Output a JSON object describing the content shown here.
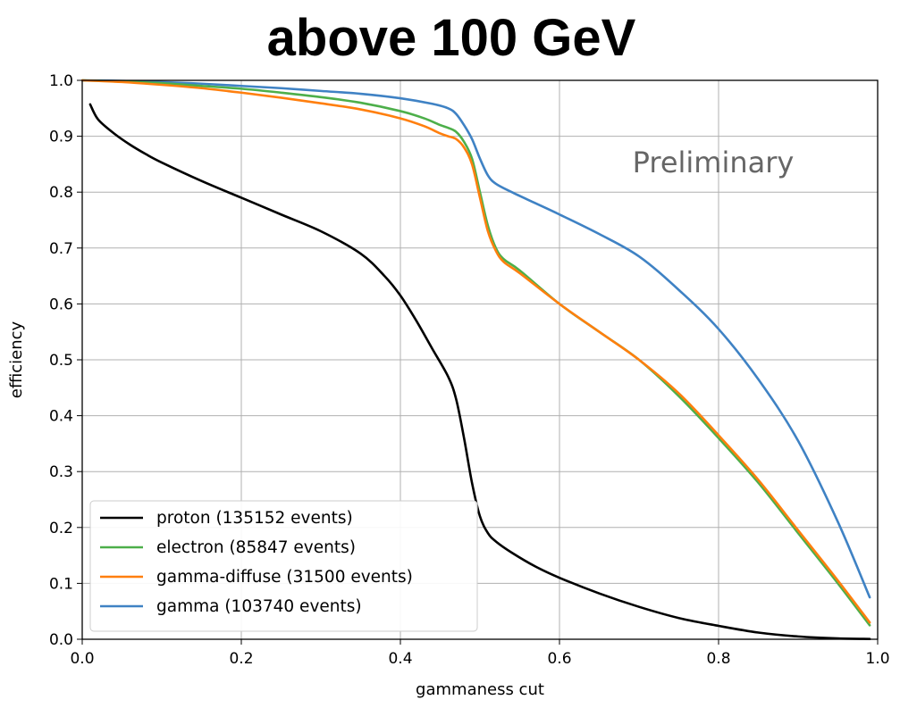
{
  "chart_data": {
    "type": "line",
    "title": "above 100 GeV",
    "xlabel": "gammaness cut",
    "ylabel": "efficiency",
    "xlim": [
      0.0,
      1.0
    ],
    "ylim": [
      0.0,
      1.0
    ],
    "grid": true,
    "xticks": [
      "0.0",
      "0.2",
      "0.4",
      "0.6",
      "0.8",
      "1.0"
    ],
    "yticks": [
      "0.0",
      "0.1",
      "0.2",
      "0.3",
      "0.4",
      "0.5",
      "0.6",
      "0.7",
      "0.8",
      "0.9",
      "1.0"
    ],
    "annotation": "Preliminary",
    "legend_position": "lower-left",
    "series": [
      {
        "name": "proton (135152 events)",
        "color": "#000000",
        "x": [
          0.01,
          0.02,
          0.04,
          0.06,
          0.08,
          0.1,
          0.15,
          0.2,
          0.25,
          0.3,
          0.35,
          0.38,
          0.4,
          0.42,
          0.44,
          0.46,
          0.47,
          0.48,
          0.49,
          0.5,
          0.51,
          0.52,
          0.54,
          0.57,
          0.6,
          0.65,
          0.7,
          0.75,
          0.8,
          0.85,
          0.9,
          0.95,
          0.99
        ],
        "y": [
          0.957,
          0.93,
          0.905,
          0.885,
          0.868,
          0.853,
          0.82,
          0.79,
          0.76,
          0.73,
          0.69,
          0.65,
          0.615,
          0.57,
          0.52,
          0.47,
          0.43,
          0.36,
          0.28,
          0.22,
          0.19,
          0.175,
          0.155,
          0.13,
          0.11,
          0.082,
          0.058,
          0.038,
          0.024,
          0.012,
          0.005,
          0.0015,
          0.0005
        ]
      },
      {
        "name": "electron (85847 events)",
        "color": "#4daf4a",
        "x": [
          0.0,
          0.05,
          0.1,
          0.15,
          0.2,
          0.25,
          0.3,
          0.35,
          0.4,
          0.43,
          0.45,
          0.46,
          0.47,
          0.48,
          0.49,
          0.5,
          0.51,
          0.52,
          0.53,
          0.55,
          0.6,
          0.65,
          0.7,
          0.75,
          0.8,
          0.85,
          0.9,
          0.95,
          0.99
        ],
        "y": [
          1.0,
          0.998,
          0.995,
          0.99,
          0.985,
          0.978,
          0.97,
          0.96,
          0.945,
          0.932,
          0.92,
          0.915,
          0.908,
          0.89,
          0.86,
          0.8,
          0.74,
          0.7,
          0.68,
          0.66,
          0.6,
          0.55,
          0.5,
          0.435,
          0.36,
          0.28,
          0.19,
          0.1,
          0.025
        ]
      },
      {
        "name": "gamma-diffuse (31500 events)",
        "color": "#ff7f0e",
        "x": [
          0.0,
          0.05,
          0.1,
          0.15,
          0.2,
          0.25,
          0.3,
          0.35,
          0.4,
          0.43,
          0.45,
          0.46,
          0.47,
          0.48,
          0.49,
          0.5,
          0.51,
          0.52,
          0.53,
          0.55,
          0.6,
          0.65,
          0.7,
          0.75,
          0.8,
          0.85,
          0.9,
          0.95,
          0.99
        ],
        "y": [
          1.0,
          0.997,
          0.992,
          0.986,
          0.978,
          0.969,
          0.959,
          0.948,
          0.932,
          0.918,
          0.905,
          0.9,
          0.895,
          0.88,
          0.85,
          0.79,
          0.73,
          0.695,
          0.675,
          0.655,
          0.6,
          0.55,
          0.5,
          0.44,
          0.365,
          0.285,
          0.195,
          0.105,
          0.03
        ]
      },
      {
        "name": "gamma (103740 events)",
        "color": "#3f82c4",
        "x": [
          0.0,
          0.05,
          0.1,
          0.15,
          0.2,
          0.25,
          0.3,
          0.35,
          0.4,
          0.44,
          0.46,
          0.47,
          0.48,
          0.49,
          0.5,
          0.51,
          0.52,
          0.54,
          0.57,
          0.6,
          0.65,
          0.7,
          0.75,
          0.8,
          0.85,
          0.9,
          0.95,
          0.99
        ],
        "y": [
          1.0,
          0.999,
          0.997,
          0.994,
          0.99,
          0.986,
          0.981,
          0.976,
          0.968,
          0.958,
          0.95,
          0.94,
          0.92,
          0.895,
          0.86,
          0.83,
          0.815,
          0.8,
          0.78,
          0.76,
          0.725,
          0.685,
          0.625,
          0.555,
          0.465,
          0.355,
          0.21,
          0.075
        ]
      }
    ]
  }
}
